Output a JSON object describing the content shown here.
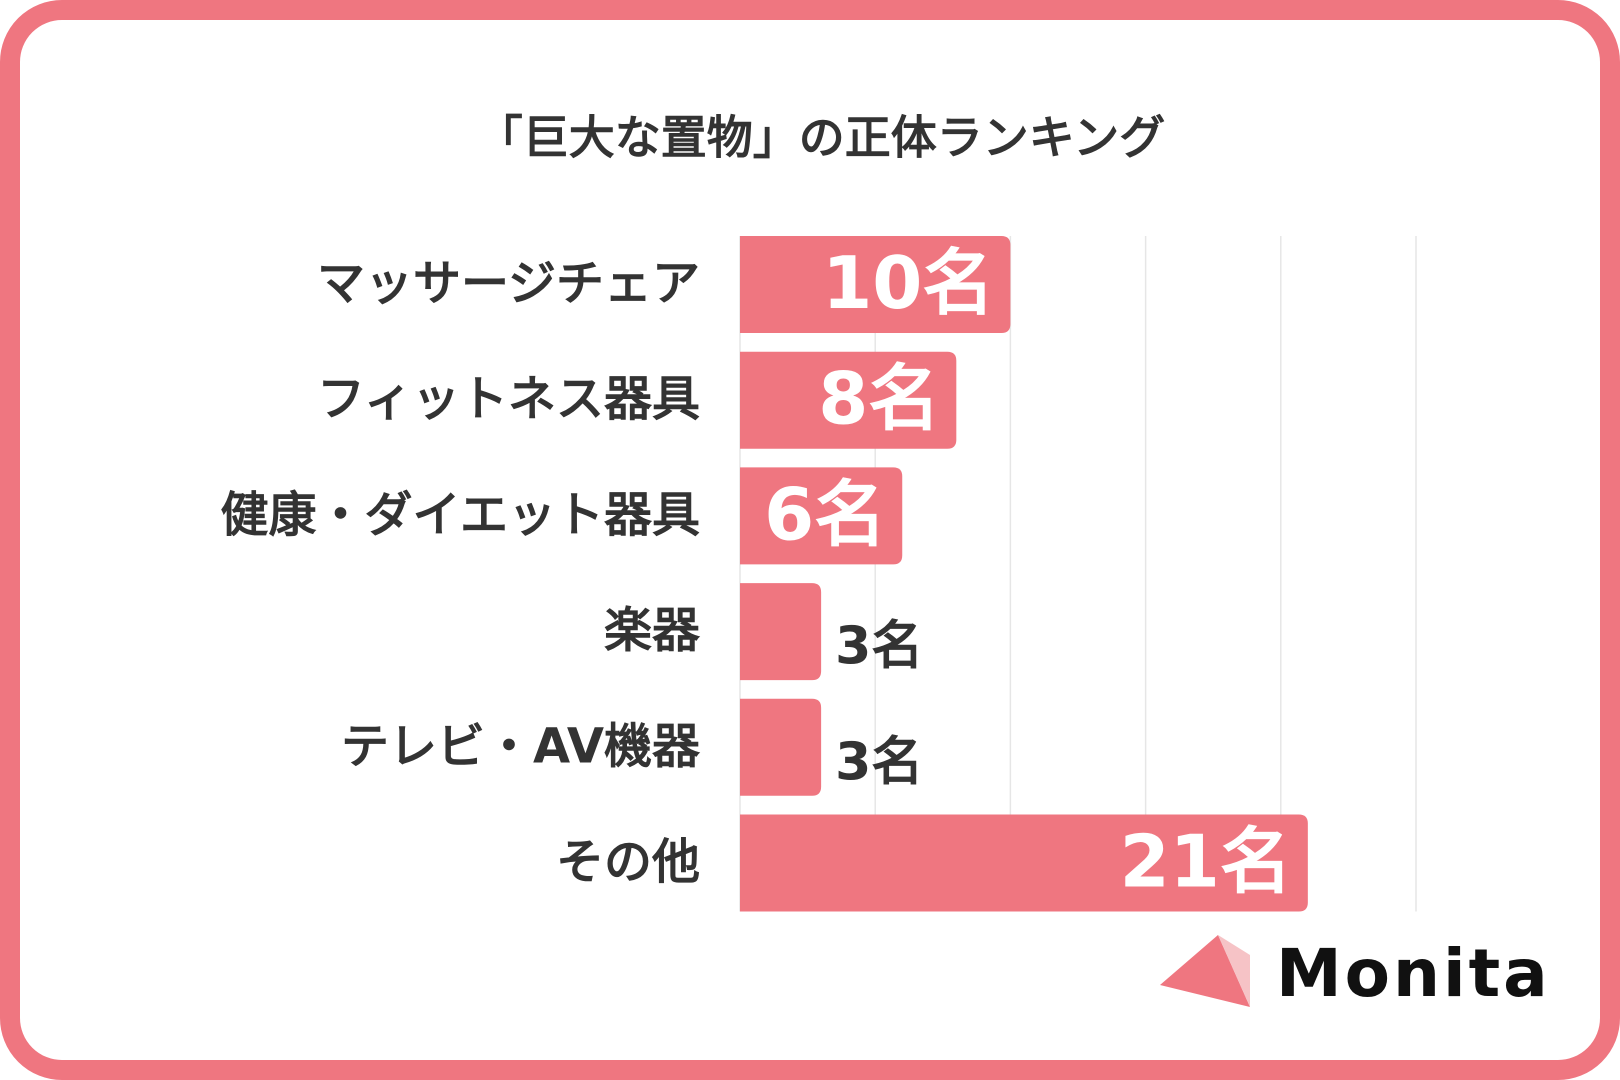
{
  "chart_data": {
    "type": "bar",
    "orientation": "horizontal",
    "title": "「巨大な置物」の正体ランキング",
    "categories": [
      "マッサージチェア",
      "フィットネス器具",
      "健康・ダイエット器具",
      "楽器",
      "テレビ・AV機器",
      "その他"
    ],
    "values": [
      10,
      8,
      6,
      3,
      3,
      21
    ],
    "value_labels": [
      "10名",
      "8名",
      "6名",
      "3名",
      "3名",
      "21名"
    ],
    "color": "#ef7680",
    "xlim": [
      0,
      25
    ],
    "xticks": [
      0,
      5,
      10,
      15,
      20,
      25
    ],
    "grid": true
  },
  "brand": "Monita"
}
